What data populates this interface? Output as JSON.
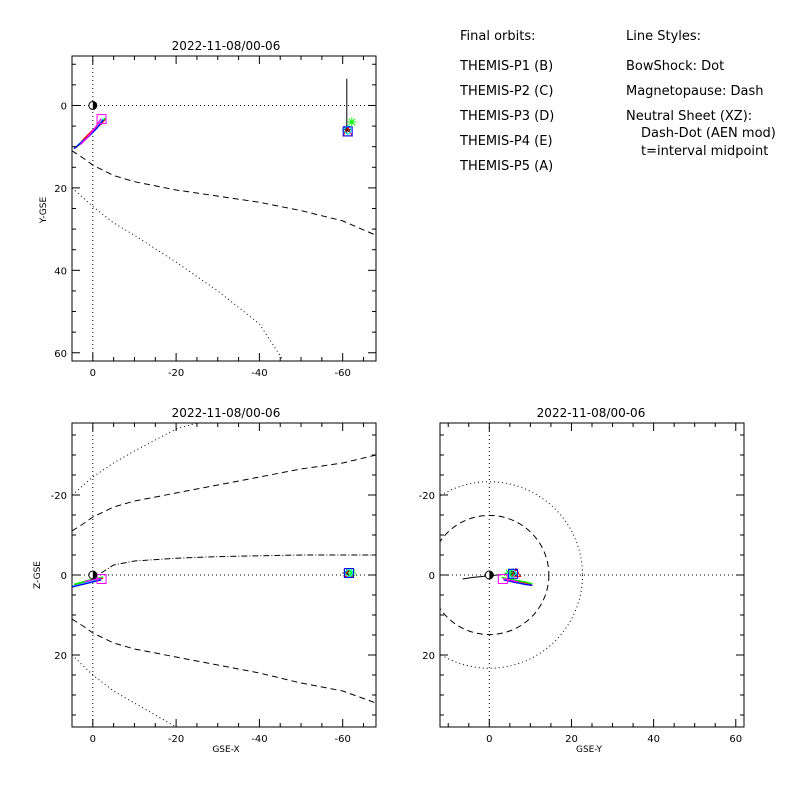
{
  "chart_data": [
    {
      "type": "line",
      "title": "2022-11-08/00-06",
      "xlabel": "",
      "ylabel": "Y-GSE",
      "xlim": [
        5,
        -68
      ],
      "ylim": [
        62,
        -12
      ],
      "x_ticks": [
        0,
        -20,
        -40,
        -60
      ],
      "y_ticks": [
        0,
        20,
        40,
        60
      ],
      "boundaries": [
        {
          "name": "BowShock",
          "style": "dot",
          "points": [
            [
              5,
              20
            ],
            [
              0,
              24.5
            ],
            [
              -5,
              28.5
            ],
            [
              -10,
              31.5
            ],
            [
              -20,
              38
            ],
            [
              -30,
              45
            ],
            [
              -40,
              53
            ],
            [
              -45.5,
              61.5
            ]
          ]
        },
        {
          "name": "Magnetopause",
          "style": "dash",
          "points": [
            [
              5,
              11
            ],
            [
              2,
              13
            ],
            [
              0,
              14.5
            ],
            [
              -5,
              17
            ],
            [
              -10,
              18.5
            ],
            [
              -20,
              20.5
            ],
            [
              -30,
              22
            ],
            [
              -40,
              23.5
            ],
            [
              -50,
              25.5
            ],
            [
              -60,
              28
            ],
            [
              -68,
              31.5
            ]
          ]
        }
      ],
      "earth": [
        0,
        0
      ],
      "orbits": [
        {
          "probe": "P1",
          "color": "#ff0000",
          "marker": "triangle",
          "points": [
            [
              -3,
              3.3
            ],
            [
              -2,
              4.5
            ],
            [
              0,
              6
            ],
            [
              2,
              8
            ],
            [
              4,
              10.2
            ]
          ],
          "final": [
            -61.2,
            6.5
          ]
        },
        {
          "probe": "P2",
          "color": "#00ff00",
          "marker": "asterisk",
          "points": [
            [
              -3,
              3
            ],
            [
              -1.5,
              4.8
            ],
            [
              0,
              6.5
            ],
            [
              2,
              8.5
            ],
            [
              4.5,
              10.5
            ]
          ],
          "final": [
            -62.2,
            4
          ]
        },
        {
          "probe": "P3",
          "color": "#00ffff",
          "marker": "diamond",
          "points": [
            [
              -2.5,
              3.2
            ],
            [
              -1,
              5.5
            ],
            [
              1,
              7.5
            ],
            [
              3.5,
              9.5
            ]
          ],
          "final": [
            -61.2,
            6
          ]
        },
        {
          "probe": "P4",
          "color": "#0000ff",
          "marker": "square",
          "points": [
            [
              -2.5,
              3.5
            ],
            [
              -1,
              5.5
            ],
            [
              1,
              7.5
            ],
            [
              3,
              9.2
            ],
            [
              4.5,
              10.5
            ]
          ],
          "final": [
            -61.2,
            6.3
          ]
        },
        {
          "probe": "P5",
          "color": "#ff00ff",
          "marker": "square",
          "points": [
            [
              -2,
              3.2
            ],
            [
              -0.5,
              5.5
            ],
            [
              1.5,
              8
            ],
            [
              3,
              9.5
            ]
          ],
          "final": [
            -2.1,
            3.3
          ]
        }
      ],
      "neutral_sheet": [],
      "moon": {
        "points": [
          [
            -61,
            -6.5
          ],
          [
            -61,
            0
          ],
          [
            -61,
            4
          ],
          [
            -61,
            6.2
          ]
        ],
        "final": [
          -61,
          5.8
        ]
      }
    },
    {
      "type": "line",
      "title": "2022-11-08/00-06",
      "xlabel": "GSE-X",
      "ylabel": "Z-GSE",
      "xlim": [
        5,
        -68
      ],
      "ylim": [
        38,
        -38
      ],
      "x_ticks": [
        0,
        -20,
        -40,
        -60
      ],
      "y_ticks": [
        20,
        0,
        -20
      ],
      "boundaries": [
        {
          "name": "BowShock",
          "style": "dot",
          "points": [
            [
              5,
              20
            ],
            [
              0,
              25
            ],
            [
              -5,
              29
            ],
            [
              -10,
              32
            ],
            [
              -15,
              35
            ],
            [
              -20,
              38
            ]
          ]
        },
        {
          "name": "BowShock",
          "style": "dot",
          "points": [
            [
              5,
              -20
            ],
            [
              0,
              -24.5
            ],
            [
              -5,
              -28
            ],
            [
              -10,
              -31
            ],
            [
              -20,
              -36.5
            ],
            [
              -25,
              -38
            ]
          ]
        },
        {
          "name": "Magnetopause",
          "style": "dash",
          "points": [
            [
              5,
              11
            ],
            [
              2,
              13
            ],
            [
              0,
              14.5
            ],
            [
              -5,
              17
            ],
            [
              -10,
              18.5
            ],
            [
              -20,
              20.5
            ],
            [
              -30,
              22.5
            ],
            [
              -40,
              24.5
            ],
            [
              -50,
              27
            ],
            [
              -60,
              29
            ],
            [
              -68,
              32
            ]
          ]
        },
        {
          "name": "Magnetopause",
          "style": "dash",
          "points": [
            [
              5,
              -11
            ],
            [
              2,
              -13
            ],
            [
              0,
              -14.5
            ],
            [
              -5,
              -17
            ],
            [
              -10,
              -18.5
            ],
            [
              -20,
              -20.5
            ],
            [
              -30,
              -22.5
            ],
            [
              -40,
              -24.5
            ],
            [
              -50,
              -26.5
            ],
            [
              -60,
              -28
            ],
            [
              -68,
              -30
            ]
          ]
        }
      ],
      "earth": [
        0,
        0
      ],
      "orbits": [
        {
          "probe": "P1",
          "color": "#ff0000",
          "marker": "triangle",
          "points": [
            [
              -2.5,
              0.8
            ],
            [
              0,
              1.2
            ],
            [
              2,
              1.8
            ],
            [
              4.5,
              2.5
            ]
          ],
          "final": [
            -61.5,
            -0.5
          ]
        },
        {
          "probe": "P2",
          "color": "#00ff00",
          "marker": "asterisk",
          "points": [
            [
              -2.5,
              0.5
            ],
            [
              0,
              1
            ],
            [
              2,
              1.6
            ],
            [
              4.5,
              2.3
            ]
          ],
          "final": [
            -62.2,
            -0.5
          ]
        },
        {
          "probe": "P3",
          "color": "#00ffff",
          "marker": "diamond",
          "points": [
            [
              -2,
              1
            ],
            [
              1,
              1.8
            ],
            [
              4,
              2.6
            ],
            [
              6,
              3
            ]
          ],
          "final": [
            -61.5,
            -0.5
          ]
        },
        {
          "probe": "P4",
          "color": "#0000ff",
          "marker": "square",
          "points": [
            [
              -2,
              1.2
            ],
            [
              1,
              2
            ],
            [
              3,
              2.5
            ],
            [
              5,
              3
            ]
          ],
          "final": [
            -61.5,
            -0.5
          ]
        },
        {
          "probe": "P5",
          "color": "#ff00ff",
          "marker": "square",
          "points": [
            [
              -2,
              0.8
            ],
            [
              0,
              1.2
            ],
            [
              2,
              1.7
            ]
          ],
          "final": [
            -2.1,
            1
          ]
        }
      ],
      "neutral_sheet": [
        [
          -2,
          -0.5
        ],
        [
          -5,
          -2.5
        ],
        [
          -10,
          -3.5
        ],
        [
          -20,
          -4.2
        ],
        [
          -30,
          -4.6
        ],
        [
          -40,
          -4.8
        ],
        [
          -50,
          -5
        ],
        [
          -60,
          -5
        ],
        [
          -68,
          -5
        ]
      ],
      "moon": {
        "points": [
          [
            -61,
            -0.5
          ]
        ],
        "final": [
          -61,
          -0.5
        ]
      }
    },
    {
      "type": "line",
      "title": "2022-11-08/00-06",
      "xlabel": "GSE-Y",
      "ylabel": "",
      "xlim": [
        -12,
        62
      ],
      "ylim": [
        38,
        -38
      ],
      "x_ticks": [
        0,
        20,
        40,
        60
      ],
      "y_ticks": [
        20,
        0,
        -20
      ],
      "boundaries": [
        {
          "name": "BowShock",
          "style": "dot",
          "circle_radius": 22.7
        },
        {
          "name": "Magnetopause",
          "style": "dash",
          "circle_radius": 14.5
        }
      ],
      "earth": [
        0,
        0
      ],
      "orbits": [
        {
          "probe": "P1",
          "color": "#ff0000",
          "marker": "triangle",
          "points": [
            [
              3.3,
              0.8
            ],
            [
              5.5,
              1.3
            ],
            [
              8,
              1.8
            ],
            [
              10.3,
              2.3
            ]
          ],
          "final": [
            6.5,
            -0.5
          ]
        },
        {
          "probe": "P2",
          "color": "#00ff00",
          "marker": "asterisk",
          "points": [
            [
              3,
              0.6
            ],
            [
              6,
              1.2
            ],
            [
              9,
              1.8
            ],
            [
              10.5,
              2.2
            ]
          ],
          "final": [
            4.8,
            -0.5
          ]
        },
        {
          "probe": "P3",
          "color": "#00ffff",
          "marker": "diamond",
          "points": [
            [
              3.5,
              1
            ],
            [
              6,
              1.7
            ],
            [
              8.5,
              2.3
            ]
          ],
          "final": [
            5.5,
            -0.4
          ]
        },
        {
          "probe": "P4",
          "color": "#0000ff",
          "marker": "square",
          "points": [
            [
              3.5,
              1.2
            ],
            [
              6,
              1.8
            ],
            [
              9,
              2.4
            ],
            [
              10.5,
              2.6
            ]
          ],
          "final": [
            5.8,
            -0.3
          ]
        },
        {
          "probe": "P5",
          "color": "#ff00ff",
          "marker": "square",
          "points": [
            [
              3.3,
              0.9
            ],
            [
              5,
              1.3
            ],
            [
              7,
              1.7
            ]
          ],
          "final": [
            3.3,
            1
          ]
        }
      ],
      "neutral_sheet": [],
      "moon": {
        "points": [
          [
            -6.5,
            1
          ],
          [
            -4,
            0.6
          ],
          [
            -2,
            0.4
          ],
          [
            0,
            0.2
          ],
          [
            2,
            0
          ],
          [
            4,
            -0.2
          ],
          [
            5.8,
            -0.4
          ]
        ],
        "final": [
          5.8,
          -0.5
        ]
      }
    }
  ],
  "legend": {
    "orbits_heading": "Final orbits:",
    "probes": [
      {
        "label": "THEMIS-P1 (B)",
        "color": "#ff0000"
      },
      {
        "label": "THEMIS-P2 (C)",
        "color": "#00ff00"
      },
      {
        "label": "THEMIS-P3 (D)",
        "color": "#00ffff"
      },
      {
        "label": "THEMIS-P4 (E)",
        "color": "#0000ff"
      },
      {
        "label": "THEMIS-P5 (A)",
        "color": "#ff00ff"
      }
    ],
    "styles_heading": "Line Styles:",
    "styles": [
      "BowShock: Dot",
      "Magnetopause: Dash",
      "Neutral Sheet (XZ):",
      "Dash-Dot (AEN mod)",
      "t=interval midpoint"
    ]
  }
}
